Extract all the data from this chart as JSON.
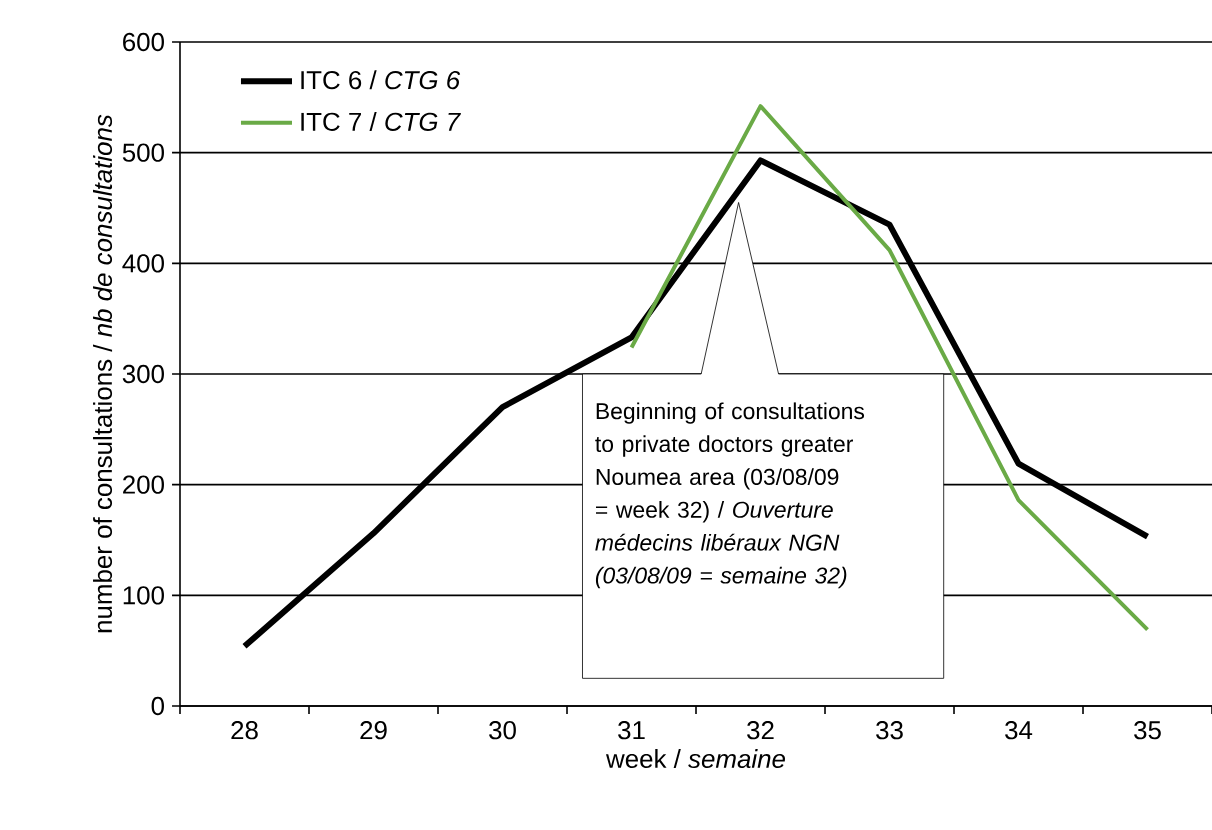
{
  "chart_data": {
    "type": "line",
    "xlabel": "week / *semaine*",
    "ylabel": "number of consultations / *nb de consultations*",
    "categories": [
      "28",
      "29",
      "30",
      "31",
      "32",
      "33",
      "34",
      "35"
    ],
    "series": [
      {
        "name": "ITC 6 / *CTG 6*",
        "color": "#000000",
        "values": [
          54,
          156,
          270,
          333,
          493,
          435,
          219,
          153
        ]
      },
      {
        "name": "ITC 7 / *CTG 7*",
        "color": "#6aaa46",
        "values": [
          null,
          null,
          null,
          324,
          542,
          412,
          186,
          69
        ]
      }
    ],
    "ylim": [
      0,
      600
    ],
    "yticks": [
      0,
      100,
      200,
      300,
      400,
      500,
      600
    ],
    "grid": "y",
    "legend": "top left",
    "marker": "none",
    "line_style": "solid",
    "annotations": [
      "Beginning of consultations to private doctors greater Noumea area (03/08/09 = week 32) / *Ouverture médecins libéraux NGN (03/08/09 = semaine 32)*"
    ]
  }
}
